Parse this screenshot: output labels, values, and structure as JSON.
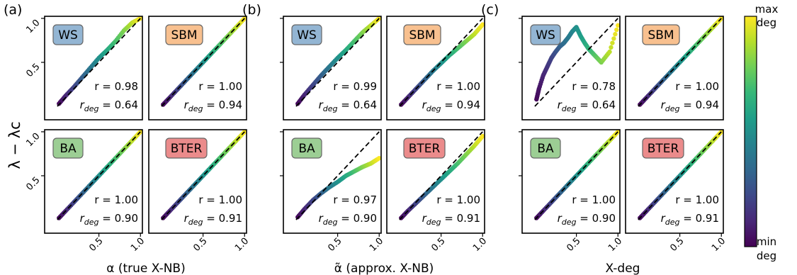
{
  "figure": {
    "colorbar": {
      "top_label": [
        "max",
        "deg"
      ],
      "bottom_label": [
        "min",
        "deg"
      ],
      "colormap": [
        "#440154",
        "#482878",
        "#3e4989",
        "#31688e",
        "#26828e",
        "#1f9e89",
        "#35b779",
        "#6ece58",
        "#b5de2b",
        "#fde725"
      ]
    },
    "ylabel": "λ − λc",
    "badge_colors": {
      "WS": "#93b5d3",
      "SBM": "#f8c08f",
      "BA": "#9cce94",
      "BTER": "#eb8b8b"
    }
  },
  "chart_data": [
    {
      "type": "scatter",
      "group": "(a)",
      "xlabel": "α (true X-NB)",
      "xlim": [
        0,
        1
      ],
      "ylim": [
        0,
        1
      ],
      "x_ticks": [
        "0.5",
        "1.0"
      ],
      "y_ticks": [
        "0.5",
        "1.0"
      ],
      "fit_line": "dashed",
      "panels": [
        {
          "model": "WS",
          "r": "r = 0.98",
          "rdeg": "0.64",
          "points": [
            [
              0.02,
              0.03
            ],
            [
              0.1,
              0.12
            ],
            [
              0.2,
              0.22
            ],
            [
              0.3,
              0.33
            ],
            [
              0.4,
              0.44
            ],
            [
              0.5,
              0.55
            ],
            [
              0.6,
              0.64
            ],
            [
              0.7,
              0.74
            ],
            [
              0.8,
              0.86
            ],
            [
              0.9,
              0.95
            ],
            [
              1.0,
              1.0
            ]
          ]
        },
        {
          "model": "SBM",
          "r": "r = 1.00",
          "rdeg": "0.94",
          "points": [
            [
              0.02,
              0.02
            ],
            [
              0.1,
              0.1
            ],
            [
              0.2,
              0.2
            ],
            [
              0.3,
              0.3
            ],
            [
              0.4,
              0.4
            ],
            [
              0.5,
              0.5
            ],
            [
              0.6,
              0.6
            ],
            [
              0.7,
              0.7
            ],
            [
              0.8,
              0.8
            ],
            [
              0.9,
              0.9
            ],
            [
              1.0,
              1.0
            ]
          ]
        },
        {
          "model": "BA",
          "r": "r = 1.00",
          "rdeg": "0.90",
          "points": [
            [
              0.02,
              0.02
            ],
            [
              0.1,
              0.1
            ],
            [
              0.2,
              0.2
            ],
            [
              0.3,
              0.3
            ],
            [
              0.4,
              0.4
            ],
            [
              0.5,
              0.5
            ],
            [
              0.6,
              0.6
            ],
            [
              0.7,
              0.7
            ],
            [
              0.8,
              0.8
            ],
            [
              0.9,
              0.9
            ],
            [
              1.0,
              1.0
            ]
          ]
        },
        {
          "model": "BTER",
          "r": "r = 1.00",
          "rdeg": "0.91",
          "points": [
            [
              0.02,
              0.02
            ],
            [
              0.1,
              0.1
            ],
            [
              0.2,
              0.2
            ],
            [
              0.3,
              0.3
            ],
            [
              0.4,
              0.4
            ],
            [
              0.5,
              0.5
            ],
            [
              0.6,
              0.6
            ],
            [
              0.7,
              0.7
            ],
            [
              0.8,
              0.8
            ],
            [
              0.9,
              0.9
            ],
            [
              1.0,
              1.0
            ]
          ]
        }
      ]
    },
    {
      "type": "scatter",
      "group": "(b)",
      "xlabel": "α̃ (approx. X-NB)",
      "xlim": [
        0,
        1
      ],
      "ylim": [
        0,
        1
      ],
      "x_ticks": [
        "0.5",
        "1.0"
      ],
      "y_ticks": [],
      "fit_line": "dashed",
      "panels": [
        {
          "model": "WS",
          "r": "r = 0.99",
          "rdeg": "0.64",
          "points": [
            [
              0.02,
              0.03
            ],
            [
              0.1,
              0.13
            ],
            [
              0.2,
              0.24
            ],
            [
              0.3,
              0.35
            ],
            [
              0.4,
              0.45
            ],
            [
              0.5,
              0.55
            ],
            [
              0.6,
              0.64
            ],
            [
              0.7,
              0.74
            ],
            [
              0.8,
              0.84
            ],
            [
              0.9,
              0.92
            ],
            [
              1.0,
              1.0
            ]
          ]
        },
        {
          "model": "SBM",
          "r": "r = 1.00",
          "rdeg": "0.94",
          "points": [
            [
              0.02,
              0.02
            ],
            [
              0.1,
              0.1
            ],
            [
              0.2,
              0.2
            ],
            [
              0.3,
              0.3
            ],
            [
              0.4,
              0.4
            ],
            [
              0.5,
              0.49
            ],
            [
              0.6,
              0.58
            ],
            [
              0.7,
              0.66
            ],
            [
              0.8,
              0.74
            ],
            [
              0.9,
              0.82
            ],
            [
              1.0,
              0.93
            ]
          ]
        },
        {
          "model": "BA",
          "r": "r = 0.97",
          "rdeg": "0.90",
          "points": [
            [
              0.02,
              0.03
            ],
            [
              0.1,
              0.12
            ],
            [
              0.2,
              0.22
            ],
            [
              0.3,
              0.3
            ],
            [
              0.4,
              0.37
            ],
            [
              0.5,
              0.43
            ],
            [
              0.6,
              0.5
            ],
            [
              0.7,
              0.55
            ],
            [
              0.8,
              0.6
            ],
            [
              0.9,
              0.64
            ],
            [
              1.0,
              0.7
            ]
          ]
        },
        {
          "model": "BTER",
          "r": "r = 1.00",
          "rdeg": "0.91",
          "points": [
            [
              0.02,
              0.02
            ],
            [
              0.1,
              0.1
            ],
            [
              0.2,
              0.19
            ],
            [
              0.3,
              0.28
            ],
            [
              0.4,
              0.37
            ],
            [
              0.5,
              0.46
            ],
            [
              0.6,
              0.55
            ],
            [
              0.7,
              0.64
            ],
            [
              0.8,
              0.74
            ],
            [
              0.9,
              0.84
            ],
            [
              1.0,
              0.95
            ]
          ]
        }
      ]
    },
    {
      "type": "scatter",
      "group": "(c)",
      "xlabel": "X-deg",
      "xlim": [
        0,
        1
      ],
      "ylim": [
        0,
        1
      ],
      "x_ticks": [
        "0.5",
        "1.0"
      ],
      "y_ticks": [],
      "fit_line": "dashed",
      "panels": [
        {
          "model": "WS",
          "r": "r = 0.78",
          "rdeg": "0.64",
          "points": [
            [
              0.02,
              0.08
            ],
            [
              0.05,
              0.2
            ],
            [
              0.1,
              0.35
            ],
            [
              0.15,
              0.45
            ],
            [
              0.2,
              0.55
            ],
            [
              0.25,
              0.62
            ],
            [
              0.3,
              0.68
            ],
            [
              0.35,
              0.72
            ],
            [
              0.4,
              0.78
            ],
            [
              0.45,
              0.85
            ],
            [
              0.5,
              0.9
            ],
            [
              0.55,
              0.8
            ],
            [
              0.6,
              0.72
            ],
            [
              0.65,
              0.65
            ],
            [
              0.7,
              0.6
            ],
            [
              0.75,
              0.55
            ],
            [
              0.8,
              0.5
            ],
            [
              0.9,
              0.62
            ],
            [
              1.0,
              0.92
            ]
          ]
        },
        {
          "model": "SBM",
          "r": "r = 1.00",
          "rdeg": "0.94",
          "points": [
            [
              0.02,
              0.02
            ],
            [
              0.1,
              0.1
            ],
            [
              0.2,
              0.2
            ],
            [
              0.3,
              0.3
            ],
            [
              0.4,
              0.4
            ],
            [
              0.5,
              0.5
            ],
            [
              0.6,
              0.6
            ],
            [
              0.7,
              0.7
            ],
            [
              0.8,
              0.8
            ],
            [
              0.9,
              0.9
            ],
            [
              1.0,
              1.0
            ]
          ]
        },
        {
          "model": "BA",
          "r": "r = 1.00",
          "rdeg": "0.90",
          "points": [
            [
              0.02,
              0.02
            ],
            [
              0.1,
              0.1
            ],
            [
              0.2,
              0.2
            ],
            [
              0.3,
              0.3
            ],
            [
              0.4,
              0.4
            ],
            [
              0.5,
              0.5
            ],
            [
              0.6,
              0.6
            ],
            [
              0.7,
              0.7
            ],
            [
              0.8,
              0.8
            ],
            [
              0.9,
              0.9
            ],
            [
              1.0,
              1.0
            ]
          ]
        },
        {
          "model": "BTER",
          "r": "r = 1.00",
          "rdeg": "0.91",
          "points": [
            [
              0.02,
              0.02
            ],
            [
              0.1,
              0.1
            ],
            [
              0.2,
              0.2
            ],
            [
              0.3,
              0.3
            ],
            [
              0.4,
              0.4
            ],
            [
              0.5,
              0.5
            ],
            [
              0.6,
              0.6
            ],
            [
              0.7,
              0.7
            ],
            [
              0.8,
              0.8
            ],
            [
              0.9,
              0.9
            ],
            [
              1.0,
              1.0
            ]
          ]
        }
      ]
    }
  ]
}
